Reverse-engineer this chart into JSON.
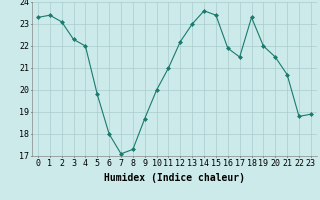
{
  "x": [
    0,
    1,
    2,
    3,
    4,
    5,
    6,
    7,
    8,
    9,
    10,
    11,
    12,
    13,
    14,
    15,
    16,
    17,
    18,
    19,
    20,
    21,
    22,
    23
  ],
  "y": [
    23.3,
    23.4,
    23.1,
    22.3,
    22.0,
    19.8,
    18.0,
    17.1,
    17.3,
    18.7,
    20.0,
    21.0,
    22.2,
    23.0,
    23.6,
    23.4,
    21.9,
    21.5,
    23.3,
    22.0,
    21.5,
    20.7,
    18.8,
    18.9
  ],
  "line_color": "#1a7a6e",
  "marker": "D",
  "marker_size": 2,
  "bg_color": "#cceaea",
  "grid_color": "#aacccc",
  "xlabel": "Humidex (Indice chaleur)",
  "ylim": [
    17,
    24
  ],
  "xlim": [
    -0.5,
    23.5
  ],
  "yticks": [
    17,
    18,
    19,
    20,
    21,
    22,
    23,
    24
  ],
  "xticks": [
    0,
    1,
    2,
    3,
    4,
    5,
    6,
    7,
    8,
    9,
    10,
    11,
    12,
    13,
    14,
    15,
    16,
    17,
    18,
    19,
    20,
    21,
    22,
    23
  ],
  "xlabel_fontsize": 7,
  "tick_fontsize": 6
}
